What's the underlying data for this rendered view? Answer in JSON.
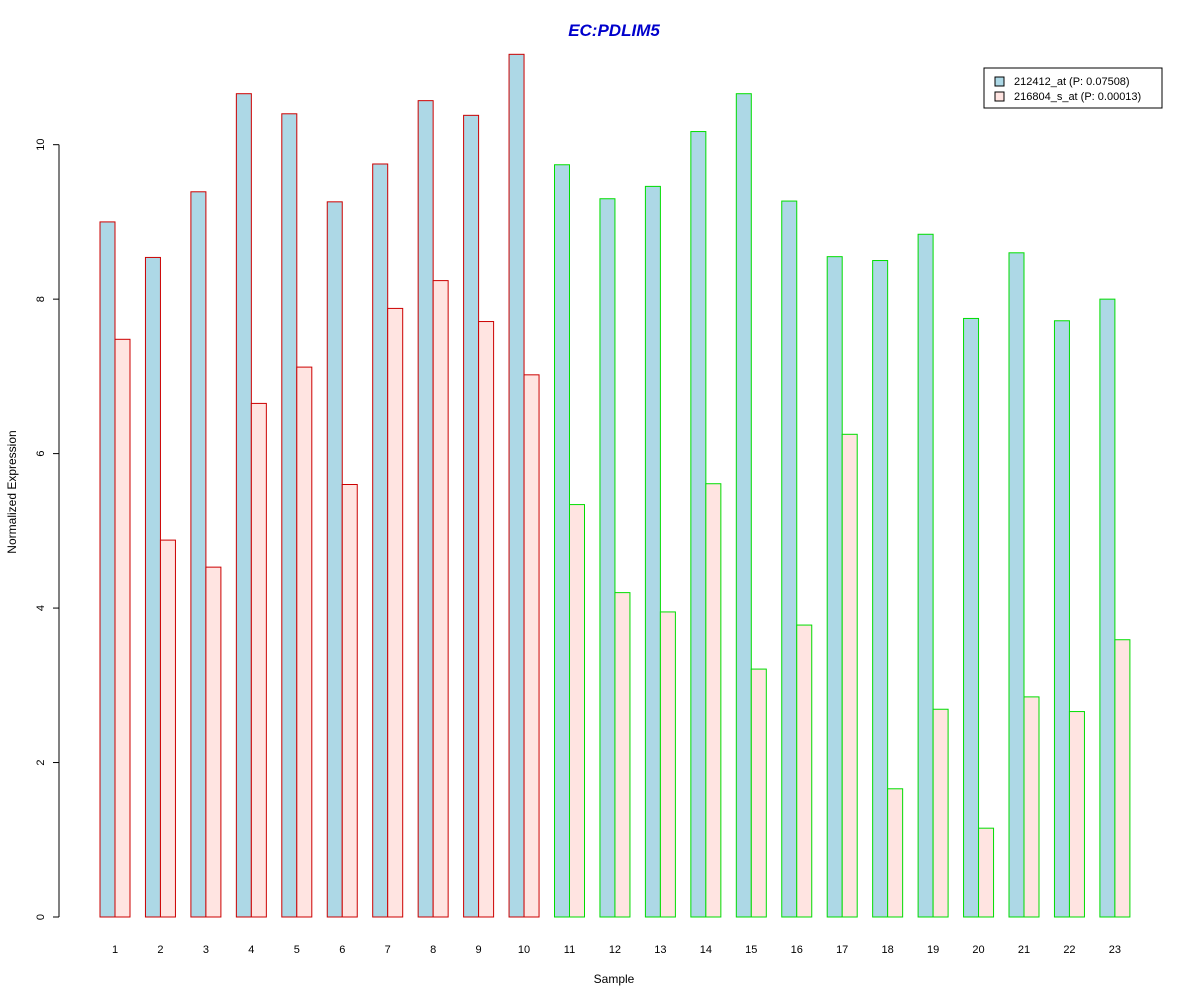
{
  "chart_data": {
    "type": "bar",
    "title": "EC:PDLIM5",
    "xlabel": "Sample",
    "ylabel": "Normalized Expression",
    "ylim": [
      0,
      11.2
    ],
    "yticks": [
      0,
      2,
      4,
      6,
      8,
      10
    ],
    "categories": [
      "1",
      "2",
      "3",
      "4",
      "5",
      "6",
      "7",
      "8",
      "9",
      "10",
      "11",
      "12",
      "13",
      "14",
      "15",
      "16",
      "17",
      "18",
      "19",
      "20",
      "21",
      "22",
      "23"
    ],
    "series": [
      {
        "name": "212412_at (P: 0.07508)",
        "fill": "#add8e6",
        "values": [
          9.0,
          8.54,
          9.39,
          10.66,
          10.4,
          9.26,
          9.75,
          10.57,
          10.38,
          11.17,
          9.74,
          9.3,
          9.46,
          10.17,
          10.66,
          9.27,
          8.55,
          8.5,
          8.84,
          7.75,
          8.6,
          7.72,
          8.0
        ]
      },
      {
        "name": "216804_s_at (P: 0.00013)",
        "fill": "#ffe4e1",
        "values": [
          7.48,
          4.88,
          4.53,
          6.65,
          7.12,
          5.6,
          7.88,
          8.24,
          7.71,
          7.02,
          5.34,
          4.2,
          3.95,
          5.61,
          3.21,
          3.78,
          6.25,
          1.66,
          2.69,
          1.15,
          2.85,
          2.66,
          3.59
        ]
      }
    ],
    "group_outline_colors": [
      "#cc0000",
      "#cc0000",
      "#cc0000",
      "#cc0000",
      "#cc0000",
      "#cc0000",
      "#cc0000",
      "#cc0000",
      "#cc0000",
      "#cc0000",
      "#00dd00",
      "#00dd00",
      "#00dd00",
      "#00dd00",
      "#00dd00",
      "#00dd00",
      "#00dd00",
      "#00dd00",
      "#00dd00",
      "#00dd00",
      "#00dd00",
      "#00dd00",
      "#00dd00"
    ],
    "legend_position": "top-right",
    "grid": false
  },
  "colors": {
    "title": "#0000cc",
    "axis": "#000000"
  }
}
